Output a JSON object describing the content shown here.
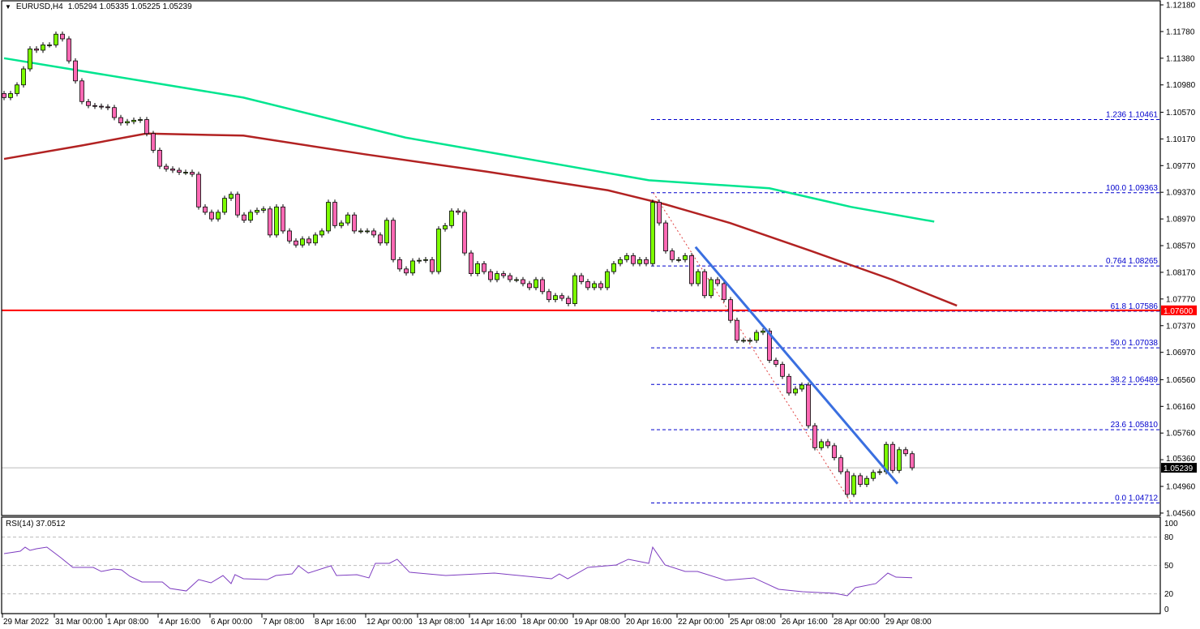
{
  "header": {
    "triangle_icon": "triangle-down-icon",
    "symbol": "EURUSD,H4",
    "ohlc": "1.05294 1.05335 1.05225 1.05239"
  },
  "colors": {
    "bull": "#7cfc00",
    "bear": "#ff69b4",
    "ma_fast": "#b22222",
    "ma_slow": "#00e58f",
    "support": "#ff0000",
    "fib": "#0000cd",
    "trendline": "#3a6fe0",
    "rsi": "#7d3cc0"
  },
  "chart_data": {
    "type": "candlestick",
    "timeframe": "H4",
    "ylim": [
      1.0456,
      1.1218
    ],
    "y_ticks": [
      "1.12180",
      "1.11780",
      "1.11380",
      "1.10980",
      "1.10570",
      "1.10170",
      "1.09770",
      "1.09370",
      "1.08970",
      "1.08570",
      "1.08170",
      "1.07770",
      "1.07370",
      "1.06970",
      "1.06560",
      "1.06160",
      "1.05760",
      "1.05360",
      "1.04960",
      "1.04560"
    ],
    "x_ticks": [
      "29 Mar 2022",
      "31 Mar 00:00",
      "1 Apr 08:00",
      "4 Apr 16:00",
      "6 Apr 00:00",
      "7 Apr 08:00",
      "8 Apr 16:00",
      "12 Apr 00:00",
      "13 Apr 08:00",
      "14 Apr 16:00",
      "18 Apr 00:00",
      "19 Apr 08:00",
      "20 Apr 16:00",
      "22 Apr 00:00",
      "25 Apr 08:00",
      "26 Apr 16:00",
      "28 Apr 00:00",
      "29 Apr 08:00"
    ],
    "closes": [
      1.1079,
      1.1085,
      1.1098,
      1.1122,
      1.1152,
      1.115,
      1.1158,
      1.1158,
      1.1174,
      1.1167,
      1.1134,
      1.1104,
      1.1073,
      1.1067,
      1.1066,
      1.1065,
      1.1064,
      1.1049,
      1.1041,
      1.1043,
      1.1045,
      1.1046,
      1.1025,
      1.1,
      1.0976,
      1.0972,
      1.097,
      1.0967,
      1.0967,
      1.0964,
      1.0915,
      1.0907,
      1.0897,
      1.0907,
      1.0928,
      1.0934,
      1.0903,
      1.0895,
      1.0907,
      1.091,
      1.0912,
      1.0873,
      1.0915,
      1.0879,
      1.0864,
      1.0858,
      1.0867,
      1.0861,
      1.0873,
      1.0879,
      1.0922,
      1.0887,
      1.0891,
      1.0903,
      1.0879,
      1.0879,
      1.0879,
      1.0873,
      1.0861,
      1.0895,
      1.0836,
      1.0822,
      1.0816,
      1.0834,
      1.0835,
      1.0836,
      1.0818,
      1.0882,
      1.0887,
      1.0909,
      1.0907,
      1.0846,
      1.0815,
      1.083,
      1.0818,
      1.0806,
      1.0815,
      1.0812,
      1.0806,
      1.0806,
      1.08,
      1.0794,
      1.0806,
      1.0788,
      1.0776,
      1.0782,
      1.0778,
      1.077,
      1.0812,
      1.0803,
      1.0794,
      1.08,
      1.0794,
      1.0818,
      1.083,
      1.0836,
      1.0842,
      1.083,
      1.0836,
      1.083,
      1.0922,
      1.0891,
      1.0849,
      1.0836,
      1.0836,
      1.0842,
      1.08,
      1.0818,
      1.0782,
      1.0806,
      1.08,
      1.0776,
      1.0745,
      1.0715,
      1.0715,
      1.0715,
      1.0727,
      1.0729,
      1.0685,
      1.0679,
      1.0661,
      1.0636,
      1.0642,
      1.0648,
      1.0587,
      1.0554,
      1.0563,
      1.0557,
      1.0539,
      1.0518,
      1.0484,
      1.0512,
      1.0499,
      1.0508,
      1.0517,
      1.0518,
      1.0559,
      1.052,
      1.0551,
      1.0545,
      1.05239
    ],
    "ma_slow": [
      [
        0,
        1.1138
      ],
      [
        36.9,
        1.1079
      ],
      [
        61.9,
        1.1019
      ],
      [
        99.4,
        1.0955
      ],
      [
        118,
        1.0943
      ],
      [
        130.6,
        1.0915
      ],
      [
        143.4,
        1.0893
      ]
    ],
    "ma_fast": [
      [
        0,
        1.0987
      ],
      [
        11.9,
        1.1007
      ],
      [
        21.9,
        1.1025
      ],
      [
        36.9,
        1.1022
      ],
      [
        55.6,
        1.0994
      ],
      [
        74.4,
        1.0968
      ],
      [
        93.1,
        1.094
      ],
      [
        101.9,
        1.0919
      ],
      [
        111.9,
        1.0891
      ],
      [
        124.4,
        1.0849
      ],
      [
        136.9,
        1.0806
      ],
      [
        146.9,
        1.0767
      ]
    ],
    "support_level": {
      "price": 1.076,
      "label": "1.07600"
    },
    "current_price": {
      "price": 1.05239,
      "label": "1.05239"
    },
    "trendline": [
      [
        106.6,
        1.0855
      ],
      [
        137.75,
        1.05
      ]
    ],
    "fib_swing": [
      [
        100.1,
        1.09363
      ],
      [
        130.6,
        1.04712
      ]
    ],
    "fib_start_bar": 99.75,
    "fib_levels": [
      {
        "label": "1.236 1.10461",
        "price": 1.10461
      },
      {
        "label": "100.0 1.09363",
        "price": 1.09363
      },
      {
        "label": "0.764 1.08265",
        "price": 1.08265
      },
      {
        "label": "61.8 1.07586",
        "price": 1.07586
      },
      {
        "label": "50.0 1.07038",
        "price": 1.07038
      },
      {
        "label": "38.2 1.06489",
        "price": 1.06489
      },
      {
        "label": "23.6 1.05810",
        "price": 1.0581
      },
      {
        "label": "0.0 1.04712",
        "price": 1.04712
      }
    ],
    "rsi": {
      "label": "RSI(14) 37.0512",
      "levels": [
        80,
        50,
        20
      ],
      "y_ticks": [
        "100",
        "80",
        "50",
        "20",
        "0"
      ],
      "points": [
        [
          0,
          62.6
        ],
        [
          2.5,
          65.1
        ],
        [
          3.25,
          69.4
        ],
        [
          4,
          66.0
        ],
        [
          5,
          67.7
        ],
        [
          6.6,
          69.4
        ],
        [
          8.75,
          58.3
        ],
        [
          10.6,
          48.0
        ],
        [
          13.75,
          48.0
        ],
        [
          15,
          43.7
        ],
        [
          16.9,
          46.3
        ],
        [
          18.1,
          45.4
        ],
        [
          19.4,
          38.6
        ],
        [
          21.25,
          32.6
        ],
        [
          24.4,
          32.6
        ],
        [
          25.6,
          25.7
        ],
        [
          28.1,
          23.1
        ],
        [
          30,
          35.1
        ],
        [
          31.9,
          31.7
        ],
        [
          33.75,
          39.4
        ],
        [
          35,
          30.9
        ],
        [
          35.6,
          40.3
        ],
        [
          36.9,
          36.0
        ],
        [
          40.6,
          35.1
        ],
        [
          41.9,
          39.4
        ],
        [
          44.4,
          41.1
        ],
        [
          45.4,
          49.7
        ],
        [
          46.9,
          42.0
        ],
        [
          50.4,
          49.7
        ],
        [
          51.25,
          39.4
        ],
        [
          54.4,
          40.3
        ],
        [
          56.25,
          36.9
        ],
        [
          57.25,
          52.3
        ],
        [
          59.4,
          52.3
        ],
        [
          60.6,
          56.6
        ],
        [
          62.5,
          42.9
        ],
        [
          68.1,
          39.4
        ],
        [
          75.6,
          42.0
        ],
        [
          79.4,
          39.4
        ],
        [
          84.4,
          36.0
        ],
        [
          85.6,
          41.1
        ],
        [
          86.9,
          36.0
        ],
        [
          90,
          48.0
        ],
        [
          94.4,
          50.6
        ],
        [
          96.25,
          56.6
        ],
        [
          99.4,
          52.3
        ],
        [
          100,
          69.4
        ],
        [
          101.9,
          50.6
        ],
        [
          105,
          43.7
        ],
        [
          106.9,
          43.7
        ],
        [
          111.25,
          34.3
        ],
        [
          115.6,
          36.9
        ],
        [
          119.4,
          24.9
        ],
        [
          123.1,
          22.3
        ],
        [
          128.1,
          20.6
        ],
        [
          130,
          18.0
        ],
        [
          131.25,
          26.6
        ],
        [
          134.4,
          30.9
        ],
        [
          136.25,
          42.0
        ],
        [
          137.5,
          37.7
        ],
        [
          140,
          37.05
        ]
      ]
    }
  }
}
